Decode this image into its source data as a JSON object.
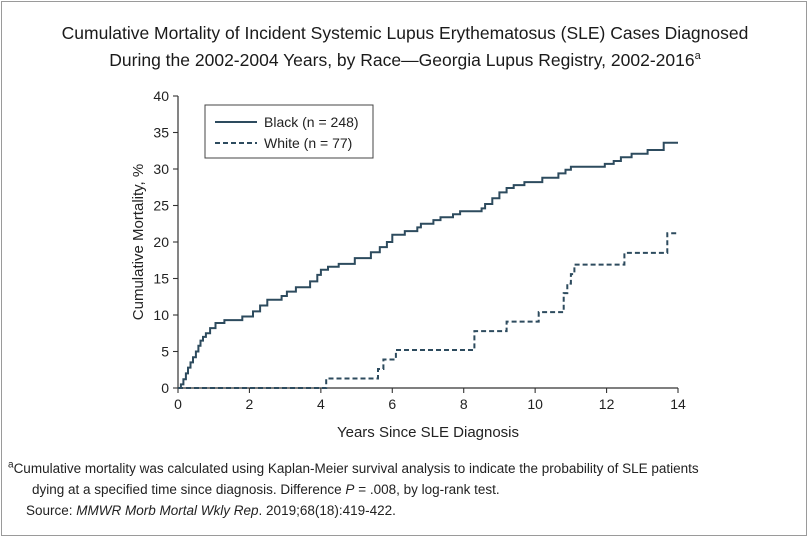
{
  "title": {
    "line1": "Cumulative Mortality of Incident Systemic Lupus Erythematosus (SLE) Cases Diagnosed",
    "line2": "During the 2002-2004 Years, by Race—Georgia Lupus Registry, 2002-2016",
    "marker": "a"
  },
  "colors": {
    "series": "#2d4b5e",
    "axis": "#333333",
    "frame": "#9a9a9a"
  },
  "chart_data": {
    "type": "line",
    "step": true,
    "xlabel": "Years Since SLE Diagnosis",
    "ylabel": "Cumulative Mortality, %",
    "xlim": [
      0,
      14
    ],
    "ylim": [
      0,
      40
    ],
    "xticks": [
      0,
      2,
      4,
      6,
      8,
      10,
      12,
      14
    ],
    "yticks": [
      0,
      5,
      10,
      15,
      20,
      25,
      30,
      35,
      40
    ],
    "xtick_labels": [
      "0",
      "2",
      "4",
      "6",
      "8",
      "10",
      "12",
      "14"
    ],
    "ytick_labels": [
      "0",
      "5",
      "10",
      "15",
      "20",
      "25",
      "30",
      "35",
      "40"
    ],
    "grid": false,
    "legend_position": "top-left",
    "series": [
      {
        "name": "Black (n = 248)",
        "style": "solid",
        "x": [
          0,
          0.08,
          0.15,
          0.22,
          0.28,
          0.35,
          0.42,
          0.5,
          0.57,
          0.63,
          0.7,
          0.78,
          0.9,
          1.05,
          1.3,
          1.8,
          2.1,
          2.3,
          2.5,
          2.9,
          3.05,
          3.3,
          3.7,
          3.9,
          4.0,
          4.2,
          4.5,
          4.95,
          5.4,
          5.65,
          5.85,
          6.0,
          6.35,
          6.7,
          6.8,
          7.15,
          7.35,
          7.7,
          7.9,
          8.5,
          8.6,
          8.8,
          9.0,
          9.2,
          9.4,
          9.7,
          10.2,
          10.65,
          10.85,
          11.0,
          11.2,
          11.95,
          12.2,
          12.4,
          12.7,
          13.15,
          13.6,
          14.0
        ],
        "y": [
          0,
          0.5,
          1.2,
          2.0,
          2.8,
          3.5,
          4.2,
          5.0,
          5.8,
          6.5,
          7.0,
          7.5,
          8.2,
          8.9,
          9.3,
          9.8,
          10.5,
          11.3,
          12.1,
          12.6,
          13.2,
          13.8,
          14.6,
          15.5,
          16.2,
          16.6,
          17.0,
          17.8,
          18.6,
          19.3,
          20.0,
          21.0,
          21.5,
          22.0,
          22.5,
          23.0,
          23.4,
          23.8,
          24.2,
          24.6,
          25.2,
          26.0,
          26.8,
          27.4,
          27.8,
          28.2,
          28.8,
          29.4,
          29.9,
          30.3,
          30.3,
          30.7,
          31.1,
          31.6,
          32.1,
          32.6,
          33.6,
          33.6
        ]
      },
      {
        "name": "White (n = 77)",
        "style": "dashed",
        "x": [
          0,
          4.0,
          4.15,
          5.6,
          5.75,
          6.1,
          8.3,
          9.2,
          10.1,
          10.8,
          10.9,
          11.0,
          11.1,
          12.5,
          13.7,
          14.0
        ],
        "y": [
          0,
          0,
          1.3,
          2.6,
          3.9,
          5.2,
          7.8,
          9.1,
          10.4,
          13.0,
          14.3,
          15.6,
          16.9,
          18.5,
          21.2,
          21.2
        ]
      }
    ]
  },
  "footnote": {
    "marker": "a",
    "text_line1": "Cumulative mortality was calculated using Kaplan-Meier survival analysis to indicate the probability of SLE patients",
    "text_line2_a": "dying at a specified time since diagnosis. Difference ",
    "text_line2_p": "P",
    "text_line2_b": " = .008, by log-rank test.",
    "source_label": "Source: ",
    "source_journal": "MMWR Morb Mortal Wkly Rep",
    "source_rest": ". 2019;68(18):419-422."
  }
}
